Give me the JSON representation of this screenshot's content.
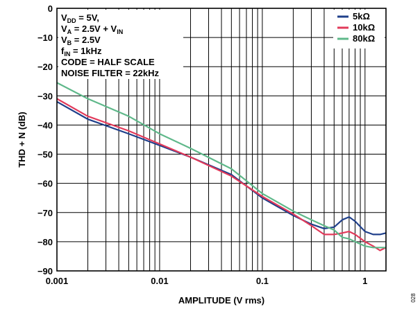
{
  "chart_data": {
    "type": "line",
    "xlabel": "AMPLITUDE (V rms)",
    "ylabel": "THD + N (dB)",
    "xscale": "log",
    "xlim": [
      0.001,
      1.6
    ],
    "ylim": [
      -90,
      0
    ],
    "x_ticks": [
      0.001,
      0.01,
      0.1,
      1
    ],
    "x_tick_labels": [
      "0.001",
      "0.01",
      "0.1",
      "1"
    ],
    "y_ticks": [
      0,
      -10,
      -20,
      -30,
      -40,
      -50,
      -60,
      -70,
      -80,
      -90
    ],
    "y_tick_labels": [
      "0",
      "−10",
      "−20",
      "−30",
      "−40",
      "−50",
      "−60",
      "−70",
      "−80",
      "−90"
    ],
    "grid": true,
    "legend_position": "top-right",
    "conditions": [
      {
        "label": "V",
        "sub": "DD",
        "rest": " = 5V,"
      },
      {
        "label": "V",
        "sub": "A",
        "rest": " = 2.5V + V",
        "sub2": "IN"
      },
      {
        "label": "V",
        "sub": "B",
        "rest": " = 2.5V"
      },
      {
        "label": "f",
        "sub": "IN",
        "rest": " = 1kHz"
      },
      {
        "label": "CODE = HALF SCALE"
      },
      {
        "label": "NOISE FILTER = 22kHz"
      }
    ],
    "series": [
      {
        "name": "5kΩ",
        "color": "#1f3f8a",
        "x": [
          0.001,
          0.002,
          0.005,
          0.01,
          0.02,
          0.05,
          0.1,
          0.2,
          0.3,
          0.4,
          0.5,
          0.6,
          0.7,
          0.8,
          1.0,
          1.2,
          1.4,
          1.6
        ],
        "y": [
          -32,
          -38,
          -43,
          -47,
          -51,
          -57,
          -65,
          -71,
          -74,
          -75.5,
          -75,
          -72.5,
          -71.5,
          -73,
          -76.5,
          -77.5,
          -77.5,
          -77
        ]
      },
      {
        "name": "10kΩ",
        "color": "#e23a5a",
        "x": [
          0.001,
          0.002,
          0.005,
          0.01,
          0.02,
          0.05,
          0.1,
          0.2,
          0.3,
          0.4,
          0.5,
          0.6,
          0.7,
          0.8,
          1.0,
          1.2,
          1.4,
          1.6
        ],
        "y": [
          -31,
          -37,
          -42,
          -46.5,
          -51,
          -57.5,
          -64.5,
          -70.5,
          -74.5,
          -77.5,
          -77.5,
          -77,
          -76.5,
          -77.5,
          -80,
          -81.5,
          -83,
          -82
        ]
      },
      {
        "name": "80kΩ",
        "color": "#5fb88a",
        "x": [
          0.001,
          0.002,
          0.005,
          0.01,
          0.02,
          0.05,
          0.1,
          0.2,
          0.3,
          0.4,
          0.5,
          0.6,
          0.7,
          0.8,
          1.0,
          1.2,
          1.4,
          1.6
        ],
        "y": [
          -25.5,
          -31,
          -37,
          -43,
          -48,
          -55,
          -63.5,
          -69.5,
          -72.5,
          -74.5,
          -76,
          -78.5,
          -79,
          -80,
          -81.5,
          -82,
          -82,
          -82
        ]
      }
    ]
  },
  "figure_id": "028"
}
